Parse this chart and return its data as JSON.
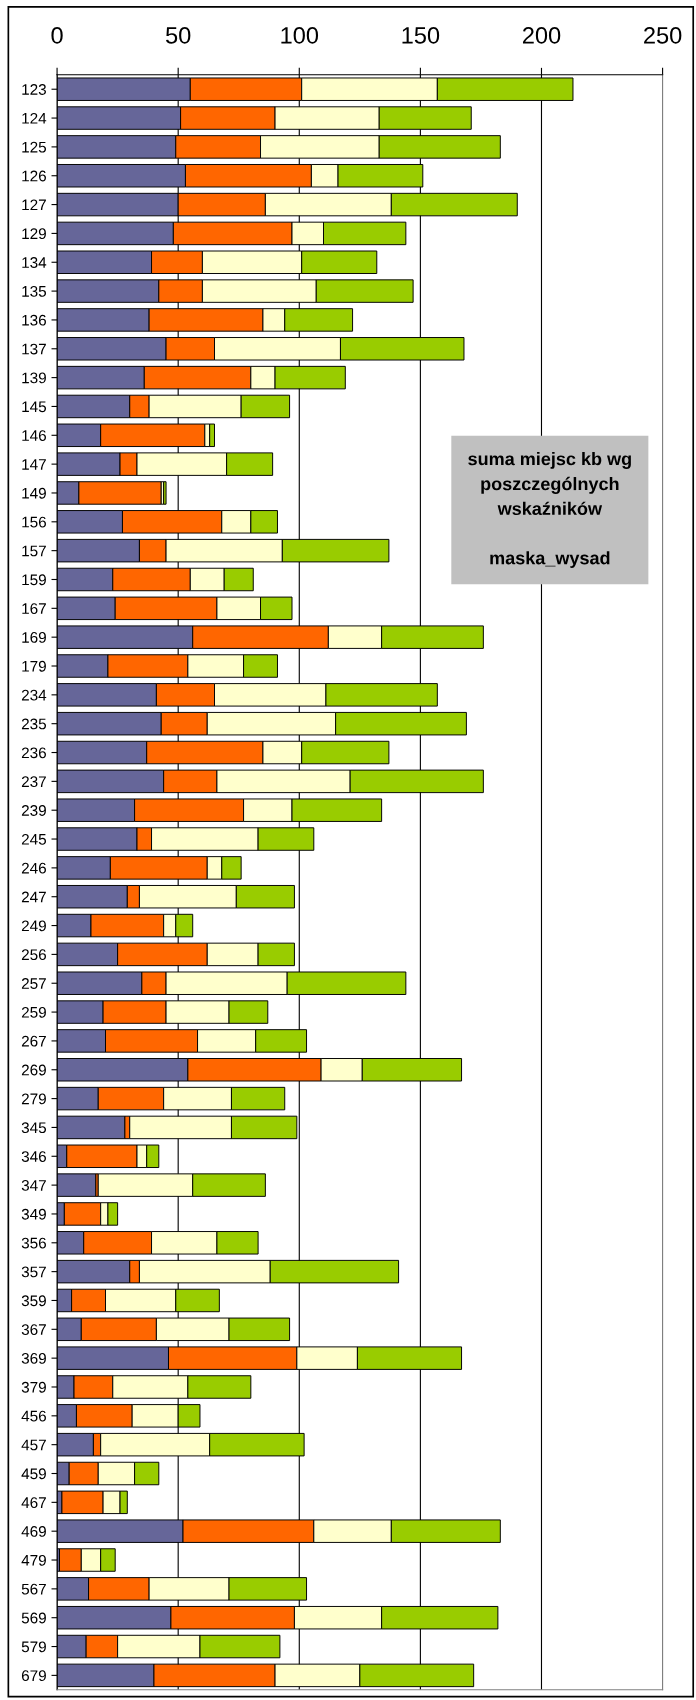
{
  "chart_data": {
    "type": "bar",
    "orientation": "horizontal",
    "stacked": true,
    "categories": [
      "123",
      "124",
      "125",
      "126",
      "127",
      "129",
      "134",
      "135",
      "136",
      "137",
      "139",
      "145",
      "146",
      "147",
      "149",
      "156",
      "157",
      "159",
      "167",
      "169",
      "179",
      "234",
      "235",
      "236",
      "237",
      "239",
      "245",
      "246",
      "247",
      "249",
      "256",
      "257",
      "259",
      "267",
      "269",
      "279",
      "345",
      "346",
      "347",
      "349",
      "356",
      "357",
      "359",
      "367",
      "369",
      "379",
      "456",
      "457",
      "459",
      "467",
      "469",
      "479",
      "567",
      "569",
      "579",
      "679"
    ],
    "series": [
      {
        "color": "#666699",
        "values": [
          55,
          51,
          49,
          53,
          50,
          48,
          39,
          42,
          38,
          45,
          36,
          30,
          18,
          26,
          9,
          27,
          34,
          23,
          24,
          56,
          21,
          41,
          43,
          37,
          44,
          32,
          33,
          22,
          29,
          14,
          25,
          35,
          19,
          20,
          54,
          17,
          28,
          4,
          16,
          3,
          11,
          30,
          6,
          10,
          46,
          7,
          8,
          15,
          5,
          2,
          52,
          1,
          13,
          47,
          12,
          40
        ]
      },
      {
        "color": "#ff6600",
        "values": [
          46,
          39,
          35,
          52,
          36,
          49,
          21,
          18,
          47,
          20,
          44,
          8,
          43,
          7,
          34,
          41,
          11,
          32,
          42,
          56,
          33,
          24,
          19,
          48,
          22,
          45,
          6,
          40,
          5,
          30,
          37,
          10,
          26,
          38,
          55,
          27,
          2,
          29,
          1,
          15,
          28,
          4,
          14,
          31,
          53,
          16,
          23,
          3,
          12,
          17,
          54,
          9,
          25,
          51,
          13,
          50
        ]
      },
      {
        "color": "#ffffcc",
        "values": [
          56,
          43,
          49,
          11,
          52,
          13,
          41,
          47,
          9,
          52,
          10,
          38,
          2,
          37,
          1,
          12,
          48,
          14,
          18,
          22,
          23,
          46,
          53,
          16,
          55,
          20,
          44,
          6,
          40,
          5,
          21,
          50,
          26,
          24,
          17,
          28,
          42,
          4,
          39,
          3,
          27,
          54,
          29,
          30,
          25,
          31,
          19,
          45,
          15,
          7,
          32,
          8,
          33,
          36,
          34,
          35
        ]
      },
      {
        "color": "#99cc00",
        "values": [
          56,
          38,
          50,
          35,
          52,
          34,
          31,
          40,
          28,
          51,
          29,
          20,
          2,
          19,
          1,
          11,
          44,
          12,
          13,
          42,
          14,
          46,
          54,
          36,
          55,
          37,
          23,
          8,
          24,
          7,
          15,
          49,
          16,
          21,
          41,
          22,
          27,
          5,
          30,
          4,
          17,
          53,
          18,
          25,
          43,
          26,
          9,
          39,
          10,
          3,
          45,
          6,
          32,
          48,
          33,
          47
        ]
      }
    ],
    "xlim": [
      0,
      250
    ],
    "xticks": [
      0,
      50,
      100,
      150,
      200,
      250
    ],
    "grid": "x",
    "legend": false,
    "annotations": [
      "suma miejsc kb wg\nposzczególnych\nwskaźników\n\nmaska_wysad"
    ]
  }
}
